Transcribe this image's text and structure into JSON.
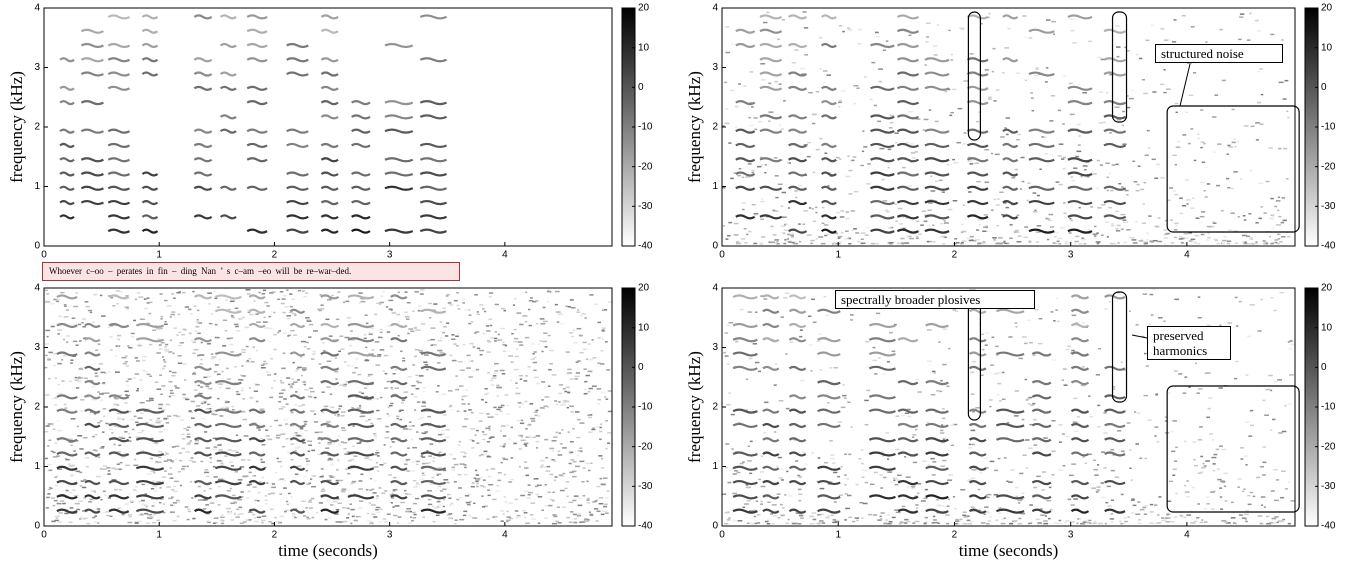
{
  "panels": [
    {
      "ylabel": "frequency (kHz)",
      "xlim": [
        0,
        4.93
      ],
      "ylim": [
        0,
        4
      ],
      "xticks": [
        0,
        1,
        2,
        3,
        4
      ],
      "yticks": [
        0,
        1,
        2,
        3,
        4
      ],
      "clim": [
        -40,
        20
      ],
      "cticks": [
        -40,
        -30,
        -20,
        -10,
        0,
        10,
        20
      ]
    },
    {
      "ylabel": "frequency (kHz)",
      "xlim": [
        0,
        4.93
      ],
      "ylim": [
        0,
        4
      ],
      "xticks": [
        0,
        1,
        2,
        3,
        4
      ],
      "yticks": [
        0,
        1,
        2,
        3,
        4
      ],
      "clim": [
        -40,
        20
      ],
      "cticks": [
        -40,
        -30,
        -20,
        -10,
        0,
        10,
        20
      ],
      "annotations": [
        "structured noise"
      ]
    },
    {
      "ylabel": "frequency (kHz)",
      "xlabel": "time (seconds)",
      "xlim": [
        0,
        4.93
      ],
      "ylim": [
        0,
        4
      ],
      "xticks": [
        0,
        1,
        2,
        3,
        4
      ],
      "yticks": [
        0,
        1,
        2,
        3,
        4
      ],
      "clim": [
        -40,
        20
      ],
      "cticks": [
        -40,
        -30,
        -20,
        -10,
        0,
        10,
        20
      ]
    },
    {
      "ylabel": "frequency (kHz)",
      "xlabel": "time (seconds)",
      "xlim": [
        0,
        4.93
      ],
      "ylim": [
        0,
        4
      ],
      "xticks": [
        0,
        1,
        2,
        3,
        4
      ],
      "yticks": [
        0,
        1,
        2,
        3,
        4
      ],
      "clim": [
        -40,
        20
      ],
      "cticks": [
        -40,
        -30,
        -20,
        -10,
        0,
        10,
        20
      ],
      "annotations": [
        "spectrally broader plosives",
        "preserved harmonics"
      ]
    }
  ],
  "transcript": "Whoever c–oo – perates in fin – ding Nan ’ s c–am –eo will be re–war–ded."
}
